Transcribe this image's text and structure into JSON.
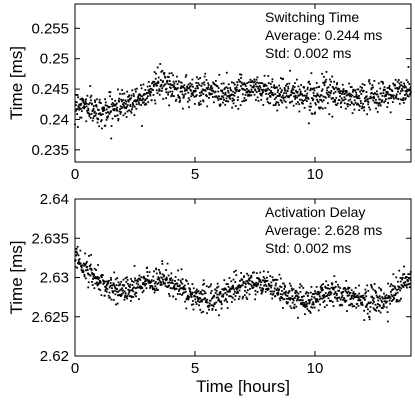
{
  "chart_data": [
    {
      "type": "scatter",
      "title": "",
      "xlabel": "",
      "ylabel": "Time [ms]",
      "xlim": [
        0,
        14
      ],
      "ylim": [
        0.233,
        0.259
      ],
      "xticks": [
        0,
        5,
        10
      ],
      "xtick_labels": [
        "0",
        "5",
        "10"
      ],
      "yticks": [
        0.235,
        0.24,
        0.245,
        0.25,
        0.255
      ],
      "ytick_labels": [
        "0.235",
        "0.24",
        "0.245",
        "0.25",
        "0.255"
      ],
      "grid": false,
      "legend": "none",
      "annotation": {
        "title": "Switching Time",
        "line1": "Average: 0.244 ms",
        "line2": "Std: 0.002 ms",
        "placement": "top-right"
      },
      "marker_color": "#000000",
      "series": [
        {
          "trend_x": [
            0,
            0.5,
            1,
            1.5,
            2,
            2.5,
            3,
            3.5,
            4,
            4.5,
            5,
            5.5,
            6,
            6.5,
            7,
            7.5,
            8,
            8.5,
            9,
            9.5,
            10,
            10.5,
            11,
            11.5,
            12,
            12.5,
            13,
            13.5,
            14
          ],
          "trend_y": [
            0.2425,
            0.2422,
            0.2412,
            0.2417,
            0.2425,
            0.2432,
            0.2445,
            0.2458,
            0.2455,
            0.2448,
            0.2448,
            0.2447,
            0.2443,
            0.2444,
            0.245,
            0.2452,
            0.2448,
            0.2443,
            0.2442,
            0.244,
            0.244,
            0.2441,
            0.244,
            0.2436,
            0.2434,
            0.2437,
            0.2442,
            0.2446,
            0.2445
          ],
          "noise_std": 0.0012,
          "points": 1200
        }
      ]
    },
    {
      "type": "scatter",
      "title": "",
      "xlabel": "Time [hours]",
      "ylabel": "Time [ms]",
      "xlim": [
        0,
        14
      ],
      "ylim": [
        2.62,
        2.64
      ],
      "xticks": [
        0,
        5,
        10
      ],
      "xtick_labels": [
        "0",
        "5",
        "10"
      ],
      "yticks": [
        2.62,
        2.625,
        2.63,
        2.635,
        2.64
      ],
      "ytick_labels": [
        "2.62",
        "2.625",
        "2.63",
        "2.635",
        "2.64"
      ],
      "grid": false,
      "legend": "none",
      "annotation": {
        "title": "Activation Delay",
        "line1": "Average: 2.628 ms",
        "line2": "Std: 0.002 ms",
        "placement": "top-right"
      },
      "marker_color": "#000000",
      "series": [
        {
          "trend_x": [
            0,
            0.5,
            1,
            1.5,
            2,
            2.5,
            3,
            3.5,
            4,
            4.5,
            5,
            5.5,
            6,
            6.5,
            7,
            7.5,
            8,
            8.5,
            9,
            9.5,
            10,
            10.5,
            11,
            11.5,
            12,
            12.5,
            13,
            13.5,
            14
          ],
          "trend_y": [
            2.633,
            2.631,
            2.6295,
            2.6285,
            2.6282,
            2.6288,
            2.6295,
            2.6298,
            2.6293,
            2.6285,
            2.6275,
            2.627,
            2.6275,
            2.6283,
            2.629,
            2.6293,
            2.629,
            2.6283,
            2.6275,
            2.6268,
            2.627,
            2.628,
            2.628,
            2.6275,
            2.627,
            2.6268,
            2.627,
            2.6285,
            2.63
          ],
          "noise_std": 0.0009,
          "points": 1200
        }
      ]
    }
  ]
}
